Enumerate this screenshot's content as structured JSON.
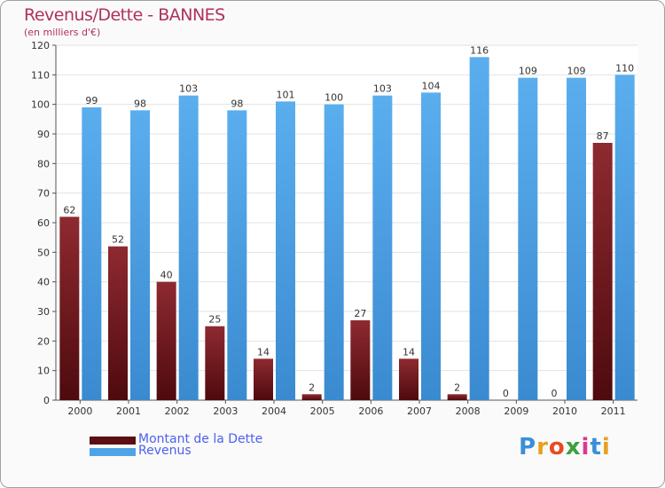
{
  "title": "Revenus/Dette - BANNES",
  "subtitle": "(en milliers d'€)",
  "chart_data": {
    "type": "bar",
    "categories": [
      "2000",
      "2001",
      "2002",
      "2003",
      "2004",
      "2005",
      "2006",
      "2007",
      "2008",
      "2009",
      "2010",
      "2011"
    ],
    "series": [
      {
        "name": "Montant de la Dette",
        "values": [
          62,
          52,
          40,
          25,
          14,
          2,
          27,
          14,
          2,
          0,
          0,
          87
        ],
        "color": "#7a1c22"
      },
      {
        "name": "Revenus",
        "values": [
          99,
          98,
          103,
          98,
          101,
          100,
          103,
          104,
          116,
          109,
          109,
          110
        ],
        "color": "#4fa3e6"
      }
    ],
    "yticks": [
      0,
      10,
      20,
      30,
      40,
      50,
      60,
      70,
      80,
      90,
      100,
      110,
      120
    ],
    "ylim": [
      0,
      120
    ],
    "legend": "bottom-left",
    "grid": true
  },
  "logo": {
    "letters": [
      "P",
      "r",
      "o",
      "x",
      "i",
      "t",
      "i"
    ],
    "colors": [
      "#3a8fd8",
      "#e8a020",
      "#e84a20",
      "#3aa040",
      "#d83a8f",
      "#3a8fd8",
      "#e8a020"
    ]
  }
}
